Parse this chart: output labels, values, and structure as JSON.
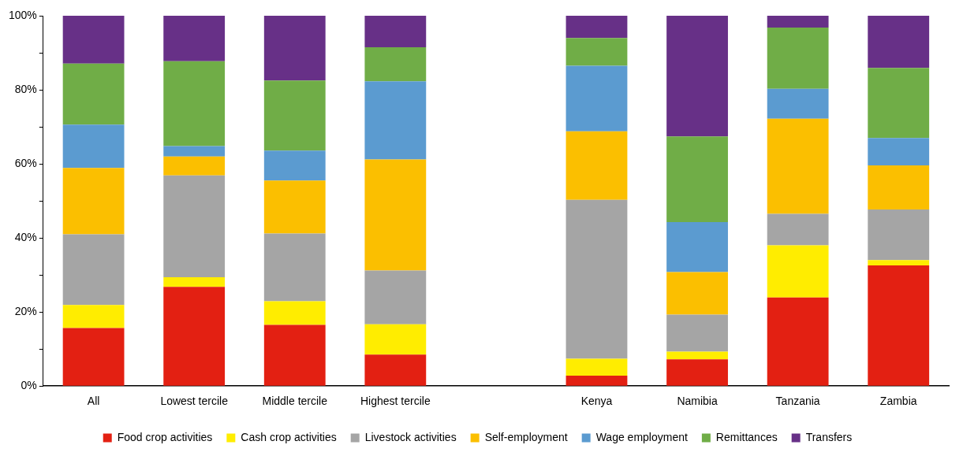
{
  "chart_data": {
    "type": "bar",
    "stacked": true,
    "categories": [
      "All",
      "Lowest tercile",
      "Middle tercile",
      "Highest tercile",
      null,
      "Kenya",
      "Namibia",
      "Tanzania",
      "Zambia"
    ],
    "series": [
      {
        "name": "Food crop activities",
        "color": "#e32012",
        "values": [
          15.7,
          26.8,
          16.5,
          8.5,
          null,
          2.8,
          7.2,
          23.9,
          32.6
        ]
      },
      {
        "name": "Cash crop activities",
        "color": "#ffed00",
        "values": [
          6.2,
          2.6,
          6.4,
          8.2,
          null,
          4.6,
          2.1,
          14.1,
          1.4
        ]
      },
      {
        "name": "Livestock activities",
        "color": "#a5a5a5",
        "values": [
          19.1,
          27.5,
          18.3,
          14.5,
          null,
          42.9,
          10.0,
          8.5,
          13.7
        ]
      },
      {
        "name": "Self-employment",
        "color": "#fbbf00",
        "values": [
          17.9,
          5.1,
          14.3,
          30.0,
          null,
          18.5,
          11.5,
          25.7,
          11.9
        ]
      },
      {
        "name": "Wage employment",
        "color": "#5b9bd0",
        "values": [
          11.7,
          2.8,
          8.1,
          21.1,
          null,
          17.7,
          13.5,
          8.1,
          7.4
        ]
      },
      {
        "name": "Remittances",
        "color": "#70ad47",
        "values": [
          16.5,
          22.9,
          18.9,
          9.2,
          null,
          7.5,
          23.1,
          16.5,
          18.9
        ]
      },
      {
        "name": "Transfers",
        "color": "#673087",
        "values": [
          12.9,
          12.3,
          17.5,
          8.5,
          null,
          6.0,
          32.6,
          3.2,
          14.1
        ]
      }
    ],
    "ylim": [
      0,
      100
    ],
    "yticks": [
      {
        "value": 0,
        "label": "0%"
      },
      {
        "value": 10,
        "label": null
      },
      {
        "value": 20,
        "label": "20%"
      },
      {
        "value": 30,
        "label": null
      },
      {
        "value": 40,
        "label": "40%"
      },
      {
        "value": 50,
        "label": null
      },
      {
        "value": 60,
        "label": "60%"
      },
      {
        "value": 70,
        "label": null
      },
      {
        "value": 80,
        "label": "80%"
      },
      {
        "value": 90,
        "label": null
      },
      {
        "value": 100,
        "label": "100%"
      }
    ],
    "grid": false,
    "legend": "bottom"
  }
}
